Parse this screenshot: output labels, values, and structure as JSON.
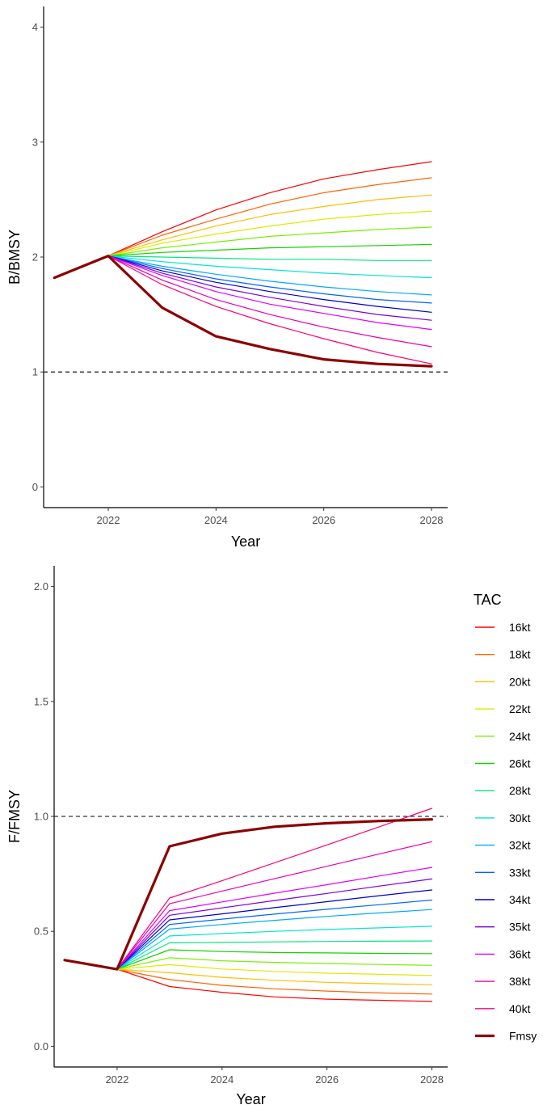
{
  "chart_data": [
    {
      "type": "line",
      "xlabel": "Year",
      "ylabel": "B/BMSY",
      "xlim": [
        2020.8,
        2028.3
      ],
      "ylim": [
        -0.18,
        4.18
      ],
      "xticks": [
        2022,
        2024,
        2026,
        2028
      ],
      "yticks": [
        0,
        1,
        2,
        3,
        4
      ],
      "reference_line": {
        "y": 1,
        "style": "dashed"
      },
      "grid": false,
      "series": [
        {
          "name": "16kt",
          "color": "#FF0000",
          "x": [
            2021,
            2022,
            2023,
            2024,
            2025,
            2026,
            2027,
            2028
          ],
          "y": [
            1.82,
            2.01,
            2.22,
            2.41,
            2.56,
            2.68,
            2.76,
            2.83
          ]
        },
        {
          "name": "18kt",
          "color": "#FF6400",
          "x": [
            2021,
            2022,
            2023,
            2024,
            2025,
            2026,
            2027,
            2028
          ],
          "y": [
            1.82,
            2.01,
            2.19,
            2.33,
            2.46,
            2.56,
            2.63,
            2.69
          ]
        },
        {
          "name": "20kt",
          "color": "#FFBE00",
          "x": [
            2021,
            2022,
            2023,
            2024,
            2025,
            2026,
            2027,
            2028
          ],
          "y": [
            1.82,
            2.01,
            2.15,
            2.27,
            2.37,
            2.44,
            2.5,
            2.54
          ]
        },
        {
          "name": "22kt",
          "color": "#DCEB00",
          "x": [
            2021,
            2022,
            2023,
            2024,
            2025,
            2026,
            2027,
            2028
          ],
          "y": [
            1.82,
            2.01,
            2.12,
            2.2,
            2.27,
            2.33,
            2.37,
            2.4
          ]
        },
        {
          "name": "24kt",
          "color": "#78F000",
          "x": [
            2021,
            2022,
            2023,
            2024,
            2025,
            2026,
            2027,
            2028
          ],
          "y": [
            1.82,
            2.01,
            2.08,
            2.13,
            2.18,
            2.21,
            2.24,
            2.26
          ]
        },
        {
          "name": "26kt",
          "color": "#14D200",
          "x": [
            2021,
            2022,
            2023,
            2024,
            2025,
            2026,
            2027,
            2028
          ],
          "y": [
            1.82,
            2.01,
            2.04,
            2.06,
            2.08,
            2.09,
            2.1,
            2.11
          ]
        },
        {
          "name": "28kt",
          "color": "#00E682",
          "x": [
            2021,
            2022,
            2023,
            2024,
            2025,
            2026,
            2027,
            2028
          ],
          "y": [
            1.82,
            2.01,
            2.0,
            1.99,
            1.98,
            1.98,
            1.97,
            1.97
          ]
        },
        {
          "name": "30kt",
          "color": "#00E6D2",
          "x": [
            2021,
            2022,
            2023,
            2024,
            2025,
            2026,
            2027,
            2028
          ],
          "y": [
            1.82,
            2.01,
            1.96,
            1.92,
            1.89,
            1.86,
            1.84,
            1.82
          ]
        },
        {
          "name": "32kt",
          "color": "#00AAFF",
          "x": [
            2021,
            2022,
            2023,
            2024,
            2025,
            2026,
            2027,
            2028
          ],
          "y": [
            1.82,
            2.01,
            1.92,
            1.85,
            1.79,
            1.74,
            1.7,
            1.67
          ]
        },
        {
          "name": "33kt",
          "color": "#0064FF",
          "x": [
            2021,
            2022,
            2023,
            2024,
            2025,
            2026,
            2027,
            2028
          ],
          "y": [
            1.82,
            2.01,
            1.9,
            1.81,
            1.74,
            1.68,
            1.63,
            1.6
          ]
        },
        {
          "name": "34kt",
          "color": "#0000C8",
          "x": [
            2021,
            2022,
            2023,
            2024,
            2025,
            2026,
            2027,
            2028
          ],
          "y": [
            1.82,
            2.01,
            1.88,
            1.78,
            1.7,
            1.63,
            1.57,
            1.52
          ]
        },
        {
          "name": "35kt",
          "color": "#7800DC",
          "x": [
            2021,
            2022,
            2023,
            2024,
            2025,
            2026,
            2027,
            2028
          ],
          "y": [
            1.82,
            2.01,
            1.86,
            1.74,
            1.65,
            1.57,
            1.5,
            1.45
          ]
        },
        {
          "name": "36kt",
          "color": "#DC00FF",
          "x": [
            2021,
            2022,
            2023,
            2024,
            2025,
            2026,
            2027,
            2028
          ],
          "y": [
            1.82,
            2.01,
            1.84,
            1.7,
            1.59,
            1.51,
            1.43,
            1.37
          ]
        },
        {
          "name": "38kt",
          "color": "#E600B4",
          "x": [
            2021,
            2022,
            2023,
            2024,
            2025,
            2026,
            2027,
            2028
          ],
          "y": [
            1.82,
            2.01,
            1.8,
            1.63,
            1.5,
            1.39,
            1.3,
            1.22
          ]
        },
        {
          "name": "40kt",
          "color": "#FF0078",
          "x": [
            2021,
            2022,
            2023,
            2024,
            2025,
            2026,
            2027,
            2028
          ],
          "y": [
            1.82,
            2.01,
            1.76,
            1.57,
            1.42,
            1.29,
            1.17,
            1.07
          ]
        },
        {
          "name": "Fmsy",
          "color": "#8B0000",
          "thick": true,
          "x": [
            2021,
            2022,
            2023,
            2024,
            2025,
            2026,
            2027,
            2028
          ],
          "y": [
            1.82,
            2.01,
            1.56,
            1.31,
            1.2,
            1.11,
            1.07,
            1.05
          ]
        }
      ]
    },
    {
      "type": "line",
      "xlabel": "Year",
      "ylabel": "F/FMSY",
      "xlim": [
        2020.8,
        2028.3
      ],
      "ylim": [
        -0.09,
        2.09
      ],
      "xticks": [
        2022,
        2024,
        2026,
        2028
      ],
      "yticks": [
        0.0,
        0.5,
        1.0,
        1.5,
        2.0
      ],
      "ytick_labels": [
        "0.0",
        "0.5",
        "1.0",
        "1.5",
        "2.0"
      ],
      "reference_line": {
        "y": 1,
        "style": "dashed"
      },
      "grid": false,
      "series": [
        {
          "name": "16kt",
          "color": "#FF0000",
          "x": [
            2021,
            2022,
            2023,
            2024,
            2025,
            2026,
            2027,
            2028
          ],
          "y": [
            0.375,
            0.335,
            0.26,
            0.235,
            0.215,
            0.205,
            0.2,
            0.195
          ]
        },
        {
          "name": "18kt",
          "color": "#FF6400",
          "x": [
            2021,
            2022,
            2023,
            2024,
            2025,
            2026,
            2027,
            2028
          ],
          "y": [
            0.375,
            0.335,
            0.29,
            0.265,
            0.25,
            0.24,
            0.232,
            0.227
          ]
        },
        {
          "name": "20kt",
          "color": "#FFBE00",
          "x": [
            2021,
            2022,
            2023,
            2024,
            2025,
            2026,
            2027,
            2028
          ],
          "y": [
            0.375,
            0.335,
            0.32,
            0.3,
            0.287,
            0.278,
            0.272,
            0.268
          ]
        },
        {
          "name": "22kt",
          "color": "#DCEB00",
          "x": [
            2021,
            2022,
            2023,
            2024,
            2025,
            2026,
            2027,
            2028
          ],
          "y": [
            0.375,
            0.335,
            0.355,
            0.336,
            0.326,
            0.318,
            0.313,
            0.308
          ]
        },
        {
          "name": "24kt",
          "color": "#78F000",
          "x": [
            2021,
            2022,
            2023,
            2024,
            2025,
            2026,
            2027,
            2028
          ],
          "y": [
            0.375,
            0.335,
            0.385,
            0.372,
            0.365,
            0.36,
            0.356,
            0.352
          ]
        },
        {
          "name": "26kt",
          "color": "#14D200",
          "x": [
            2021,
            2022,
            2023,
            2024,
            2025,
            2026,
            2027,
            2028
          ],
          "y": [
            0.375,
            0.335,
            0.42,
            0.412,
            0.408,
            0.406,
            0.404,
            0.403
          ]
        },
        {
          "name": "28kt",
          "color": "#00E682",
          "x": [
            2021,
            2022,
            2023,
            2024,
            2025,
            2026,
            2027,
            2028
          ],
          "y": [
            0.375,
            0.335,
            0.45,
            0.452,
            0.454,
            0.456,
            0.457,
            0.458
          ]
        },
        {
          "name": "30kt",
          "color": "#00E6D2",
          "x": [
            2021,
            2022,
            2023,
            2024,
            2025,
            2026,
            2027,
            2028
          ],
          "y": [
            0.375,
            0.335,
            0.48,
            0.49,
            0.5,
            0.508,
            0.515,
            0.522
          ]
        },
        {
          "name": "32kt",
          "color": "#00AAFF",
          "x": [
            2021,
            2022,
            2023,
            2024,
            2025,
            2026,
            2027,
            2028
          ],
          "y": [
            0.375,
            0.335,
            0.51,
            0.53,
            0.548,
            0.565,
            0.58,
            0.595
          ]
        },
        {
          "name": "33kt",
          "color": "#0064FF",
          "x": [
            2021,
            2022,
            2023,
            2024,
            2025,
            2026,
            2027,
            2028
          ],
          "y": [
            0.375,
            0.335,
            0.53,
            0.553,
            0.575,
            0.596,
            0.616,
            0.636
          ]
        },
        {
          "name": "34kt",
          "color": "#0000C8",
          "x": [
            2021,
            2022,
            2023,
            2024,
            2025,
            2026,
            2027,
            2028
          ],
          "y": [
            0.375,
            0.335,
            0.55,
            0.576,
            0.603,
            0.629,
            0.655,
            0.68
          ]
        },
        {
          "name": "35kt",
          "color": "#7800DC",
          "x": [
            2021,
            2022,
            2023,
            2024,
            2025,
            2026,
            2027,
            2028
          ],
          "y": [
            0.375,
            0.335,
            0.57,
            0.602,
            0.634,
            0.665,
            0.697,
            0.728
          ]
        },
        {
          "name": "36kt",
          "color": "#DC00FF",
          "x": [
            2021,
            2022,
            2023,
            2024,
            2025,
            2026,
            2027,
            2028
          ],
          "y": [
            0.375,
            0.335,
            0.59,
            0.628,
            0.666,
            0.703,
            0.741,
            0.778
          ]
        },
        {
          "name": "38kt",
          "color": "#E600B4",
          "x": [
            2021,
            2022,
            2023,
            2024,
            2025,
            2026,
            2027,
            2028
          ],
          "y": [
            0.375,
            0.335,
            0.62,
            0.675,
            0.729,
            0.783,
            0.837,
            0.89
          ]
        },
        {
          "name": "40kt",
          "color": "#FF0078",
          "x": [
            2021,
            2022,
            2023,
            2024,
            2025,
            2026,
            2027,
            2028
          ],
          "y": [
            0.375,
            0.335,
            0.645,
            0.72,
            0.798,
            0.876,
            0.955,
            1.035
          ]
        },
        {
          "name": "Fmsy",
          "color": "#8B0000",
          "thick": true,
          "x": [
            2021,
            2022,
            2023,
            2024,
            2025,
            2026,
            2027,
            2028
          ],
          "y": [
            0.375,
            0.335,
            0.87,
            0.925,
            0.955,
            0.97,
            0.98,
            0.987
          ]
        }
      ]
    }
  ],
  "legend": {
    "title": "TAC",
    "placement": "right",
    "items": [
      {
        "label": "16kt",
        "color": "#FF0000"
      },
      {
        "label": "18kt",
        "color": "#FF6400"
      },
      {
        "label": "20kt",
        "color": "#FFBE00"
      },
      {
        "label": "22kt",
        "color": "#DCEB00"
      },
      {
        "label": "24kt",
        "color": "#78F000"
      },
      {
        "label": "26kt",
        "color": "#14D200"
      },
      {
        "label": "28kt",
        "color": "#00E682"
      },
      {
        "label": "30kt",
        "color": "#00E6D2"
      },
      {
        "label": "32kt",
        "color": "#00AAFF"
      },
      {
        "label": "33kt",
        "color": "#0064FF"
      },
      {
        "label": "34kt",
        "color": "#0000C8"
      },
      {
        "label": "35kt",
        "color": "#7800DC"
      },
      {
        "label": "36kt",
        "color": "#DC00FF"
      },
      {
        "label": "38kt",
        "color": "#E600B4"
      },
      {
        "label": "40kt",
        "color": "#FF0078"
      },
      {
        "label": "Fmsy",
        "color": "#8B0000",
        "thick": true
      }
    ]
  }
}
